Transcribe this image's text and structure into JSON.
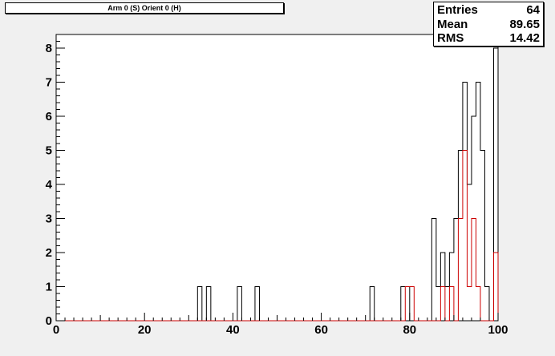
{
  "title": "Arm 0 (S) Orient 0 (H)",
  "stats": [
    {
      "name": "Entries",
      "value": "64"
    },
    {
      "name": "Mean",
      "value": "89.65"
    },
    {
      "name": "RMS",
      "value": "14.42"
    }
  ],
  "chart_data": {
    "type": "histogram",
    "title": "Arm 0 (S) Orient 0 (H)",
    "xlim": [
      0,
      100
    ],
    "ylim": [
      0,
      8.4
    ],
    "x_ticks": [
      0,
      20,
      40,
      60,
      80,
      100
    ],
    "y_ticks": [
      0,
      1,
      2,
      3,
      4,
      5,
      6,
      7,
      8
    ],
    "bin_width": 1,
    "grid": false,
    "series": [
      {
        "color": "#000000",
        "bins": [
          {
            "x": 32,
            "y": 1
          },
          {
            "x": 34,
            "y": 1
          },
          {
            "x": 41,
            "y": 1
          },
          {
            "x": 45,
            "y": 1
          },
          {
            "x": 71,
            "y": 1
          },
          {
            "x": 78,
            "y": 1
          },
          {
            "x": 79,
            "y": 1
          },
          {
            "x": 85,
            "y": 3
          },
          {
            "x": 86,
            "y": 1
          },
          {
            "x": 87,
            "y": 2
          },
          {
            "x": 88,
            "y": 1
          },
          {
            "x": 89,
            "y": 2
          },
          {
            "x": 90,
            "y": 3
          },
          {
            "x": 91,
            "y": 5
          },
          {
            "x": 92,
            "y": 7
          },
          {
            "x": 93,
            "y": 4
          },
          {
            "x": 94,
            "y": 6
          },
          {
            "x": 95,
            "y": 7
          },
          {
            "x": 96,
            "y": 5
          },
          {
            "x": 97,
            "y": 1
          },
          {
            "x": 99,
            "y": 8
          }
        ]
      },
      {
        "color": "#cc0000",
        "bins": [
          {
            "x": 79,
            "y": 1
          },
          {
            "x": 80,
            "y": 1
          },
          {
            "x": 87,
            "y": 1
          },
          {
            "x": 89,
            "y": 1
          },
          {
            "x": 91,
            "y": 3
          },
          {
            "x": 92,
            "y": 5
          },
          {
            "x": 93,
            "y": 1
          },
          {
            "x": 94,
            "y": 3
          },
          {
            "x": 95,
            "y": 1
          },
          {
            "x": 99,
            "y": 2
          }
        ]
      }
    ]
  }
}
